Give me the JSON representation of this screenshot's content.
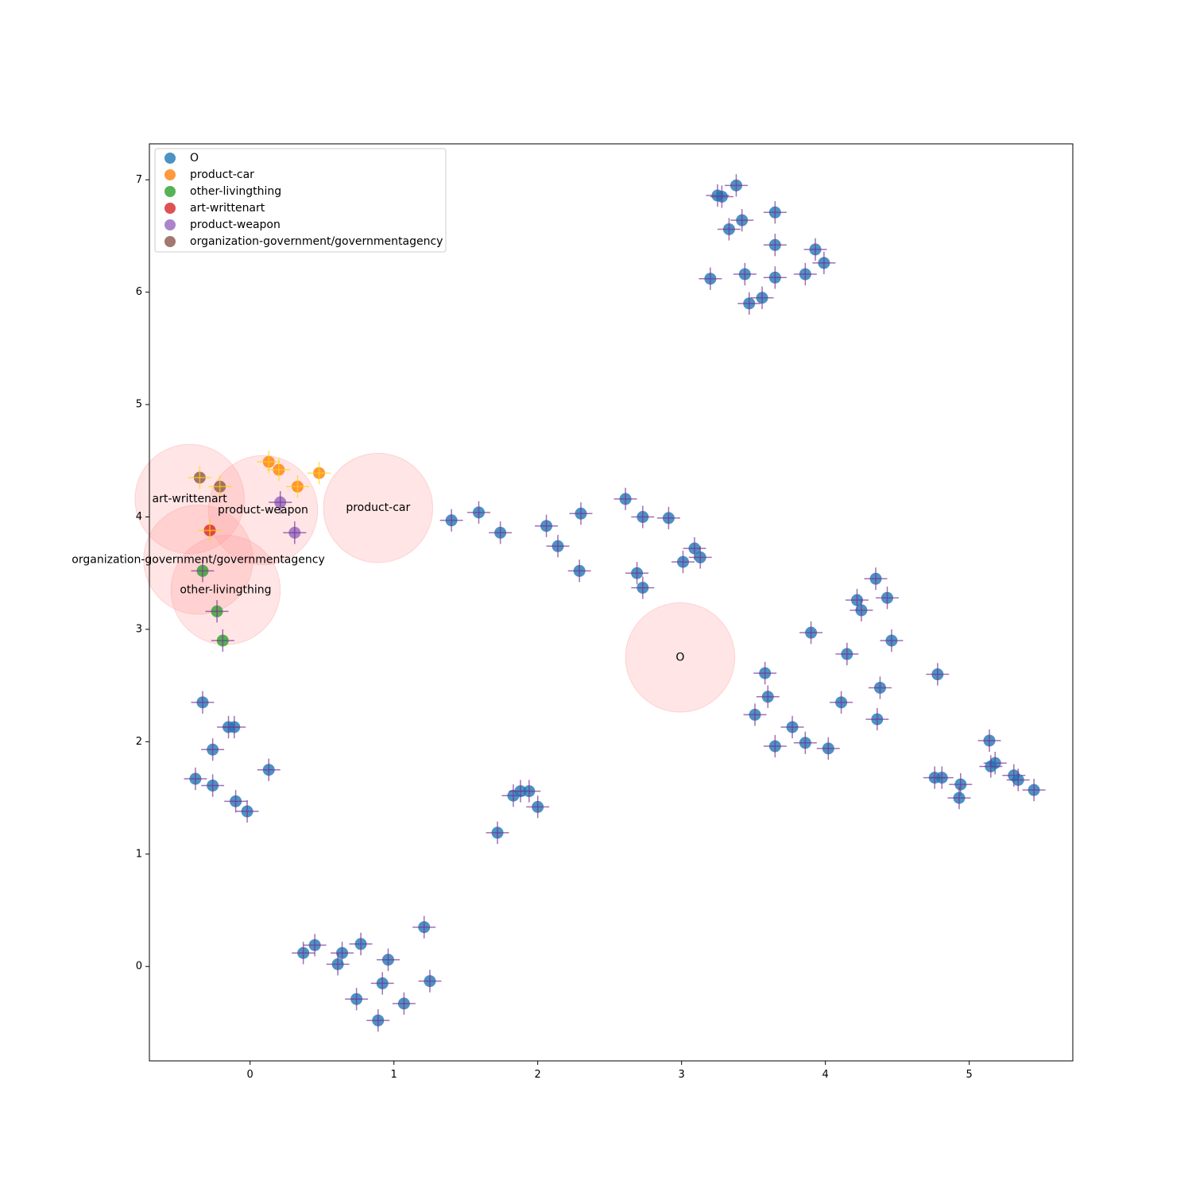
{
  "chart_data": {
    "type": "scatter",
    "title": "",
    "xlabel": "",
    "ylabel": "",
    "xlim": [
      -0.7,
      5.72
    ],
    "ylim": [
      -0.84,
      7.32
    ],
    "xticks": [
      0,
      1,
      2,
      3,
      4,
      5
    ],
    "yticks": [
      0,
      1,
      2,
      3,
      4,
      5,
      6,
      7
    ],
    "grid": false,
    "legend_position": "upper-left",
    "errorbar_half_width_x": 0.08,
    "errorbar_half_height_y": 0.1,
    "cluster_radius": 0.38,
    "series": [
      {
        "name": "O",
        "color": "#1f77b4",
        "errorbar_color": "#7b3294",
        "points": [
          [
            3.38,
            6.95
          ],
          [
            3.25,
            6.86
          ],
          [
            3.28,
            6.85
          ],
          [
            3.65,
            6.71
          ],
          [
            3.42,
            6.64
          ],
          [
            3.33,
            6.56
          ],
          [
            3.65,
            6.42
          ],
          [
            3.93,
            6.38
          ],
          [
            3.99,
            6.26
          ],
          [
            3.2,
            6.12
          ],
          [
            3.44,
            6.16
          ],
          [
            3.65,
            6.13
          ],
          [
            3.86,
            6.16
          ],
          [
            3.56,
            5.95
          ],
          [
            3.47,
            5.9
          ],
          [
            1.4,
            3.97
          ],
          [
            1.59,
            4.04
          ],
          [
            1.74,
            3.86
          ],
          [
            2.06,
            3.92
          ],
          [
            2.14,
            3.74
          ],
          [
            2.3,
            4.03
          ],
          [
            2.29,
            3.52
          ],
          [
            2.61,
            4.16
          ],
          [
            2.73,
            4.0
          ],
          [
            2.91,
            3.99
          ],
          [
            2.69,
            3.5
          ],
          [
            2.73,
            3.37
          ],
          [
            3.01,
            3.6
          ],
          [
            3.09,
            3.72
          ],
          [
            3.13,
            3.64
          ],
          [
            4.35,
            3.45
          ],
          [
            4.22,
            3.26
          ],
          [
            4.25,
            3.17
          ],
          [
            4.43,
            3.28
          ],
          [
            3.9,
            2.97
          ],
          [
            4.46,
            2.9
          ],
          [
            4.15,
            2.78
          ],
          [
            3.58,
            2.61
          ],
          [
            4.38,
            2.48
          ],
          [
            3.6,
            2.4
          ],
          [
            4.11,
            2.35
          ],
          [
            3.51,
            2.24
          ],
          [
            4.36,
            2.2
          ],
          [
            3.77,
            2.13
          ],
          [
            3.86,
            1.99
          ],
          [
            3.65,
            1.96
          ],
          [
            4.02,
            1.94
          ],
          [
            4.78,
            2.6
          ],
          [
            5.14,
            2.01
          ],
          [
            5.18,
            1.81
          ],
          [
            5.15,
            1.78
          ],
          [
            5.31,
            1.7
          ],
          [
            5.34,
            1.66
          ],
          [
            4.76,
            1.68
          ],
          [
            4.81,
            1.68
          ],
          [
            4.94,
            1.62
          ],
          [
            4.93,
            1.5
          ],
          [
            5.45,
            1.57
          ],
          [
            -0.33,
            2.35
          ],
          [
            -0.15,
            2.13
          ],
          [
            -0.11,
            2.13
          ],
          [
            -0.26,
            1.93
          ],
          [
            0.13,
            1.75
          ],
          [
            -0.38,
            1.67
          ],
          [
            -0.26,
            1.61
          ],
          [
            -0.1,
            1.47
          ],
          [
            -0.02,
            1.38
          ],
          [
            1.72,
            1.19
          ],
          [
            1.83,
            1.52
          ],
          [
            1.88,
            1.56
          ],
          [
            1.94,
            1.56
          ],
          [
            2.0,
            1.42
          ],
          [
            1.21,
            0.35
          ],
          [
            0.37,
            0.12
          ],
          [
            0.45,
            0.19
          ],
          [
            0.64,
            0.12
          ],
          [
            0.77,
            0.2
          ],
          [
            0.61,
            0.02
          ],
          [
            0.96,
            0.06
          ],
          [
            1.25,
            -0.13
          ],
          [
            0.92,
            -0.15
          ],
          [
            0.74,
            -0.29
          ],
          [
            1.07,
            -0.33
          ],
          [
            0.89,
            -0.48
          ]
        ]
      },
      {
        "name": "product-car",
        "color": "#ff7f0e",
        "errorbar_color": "#ffd700",
        "points": [
          [
            0.13,
            4.49
          ],
          [
            0.2,
            4.42
          ],
          [
            0.48,
            4.39
          ],
          [
            0.33,
            4.27
          ]
        ]
      },
      {
        "name": "other-livingthing",
        "color": "#2ca02c",
        "errorbar_color": "#7b3294",
        "points": [
          [
            -0.33,
            3.52
          ],
          [
            -0.23,
            3.16
          ],
          [
            -0.19,
            2.9
          ]
        ]
      },
      {
        "name": "art-writtenart",
        "color": "#d62728",
        "errorbar_color": "#ffd700",
        "points": [
          [
            -0.28,
            3.88
          ]
        ]
      },
      {
        "name": "product-weapon",
        "color": "#9467bd",
        "errorbar_color": "#7b3294",
        "points": [
          [
            0.21,
            4.13
          ],
          [
            0.31,
            3.86
          ]
        ]
      },
      {
        "name": "organization-government/governmentagency",
        "color": "#8c564b",
        "errorbar_color": "#ffd700",
        "points": [
          [
            -0.35,
            4.35
          ],
          [
            -0.21,
            4.27
          ]
        ]
      }
    ],
    "clusters": [
      {
        "label": "art-writtenart",
        "x": -0.42,
        "y": 4.16
      },
      {
        "label": "product-weapon",
        "x": 0.09,
        "y": 4.06
      },
      {
        "label": "product-car",
        "x": 0.89,
        "y": 4.08
      },
      {
        "label": "organization-government/governmentagency",
        "x": -0.36,
        "y": 3.62
      },
      {
        "label": "other-livingthing",
        "x": -0.17,
        "y": 3.35
      },
      {
        "label": "O",
        "x": 2.99,
        "y": 2.75
      }
    ]
  }
}
